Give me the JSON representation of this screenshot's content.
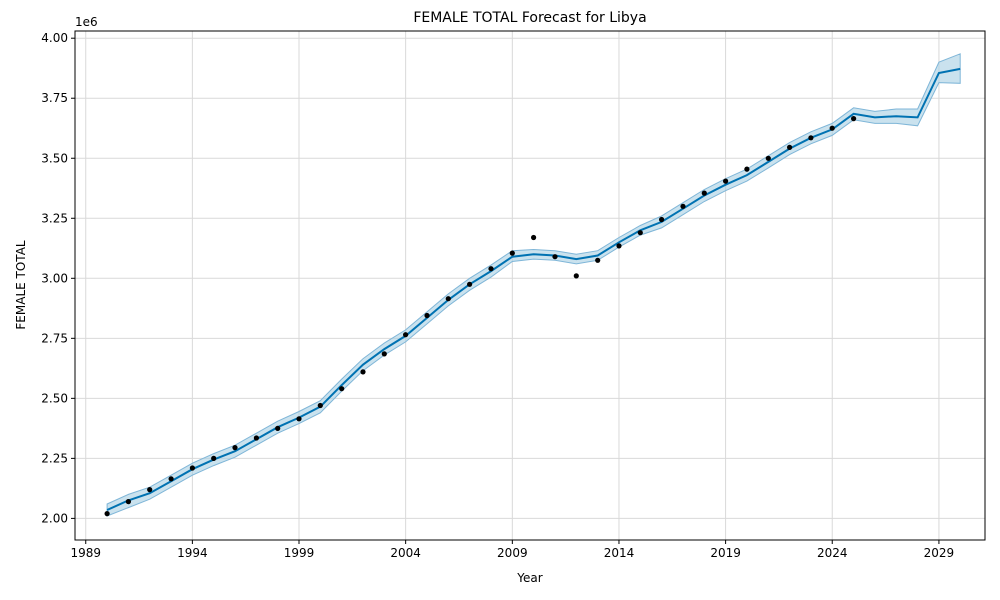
{
  "chart_data": {
    "type": "line",
    "title": "FEMALE TOTAL Forecast for Libya",
    "xlabel": "Year",
    "ylabel": "FEMALE TOTAL",
    "y_multiplier_label": "1e6",
    "xlim": [
      "1988-07-01",
      "2031-03-01"
    ],
    "ylim": [
      1.91,
      4.03
    ],
    "x_ticks": [
      "1989",
      "1994",
      "1999",
      "2004",
      "2009",
      "2014",
      "2019",
      "2024",
      "2029"
    ],
    "y_ticks": [
      "2.00",
      "2.25",
      "2.50",
      "2.75",
      "3.00",
      "3.25",
      "3.50",
      "3.75",
      "4.00"
    ],
    "grid": true,
    "colors": {
      "forecast": "#0072B2",
      "band": "#A6CEE3",
      "observed": "#000000",
      "grid": "#d9d9d9"
    },
    "observed": {
      "x": [
        "1990-01-01",
        "1991-01-01",
        "1992-01-01",
        "1993-01-01",
        "1994-01-01",
        "1995-01-01",
        "1996-01-01",
        "1997-01-01",
        "1998-01-01",
        "1999-01-01",
        "2000-01-01",
        "2001-01-01",
        "2002-01-01",
        "2003-01-01",
        "2004-01-01",
        "2005-01-01",
        "2006-01-01",
        "2007-01-01",
        "2008-01-01",
        "2009-01-01",
        "2010-01-01",
        "2011-01-01",
        "2012-01-01",
        "2013-01-01",
        "2014-01-01",
        "2015-01-01",
        "2016-01-01",
        "2017-01-01",
        "2018-01-01",
        "2019-01-01",
        "2020-01-01",
        "2021-01-01",
        "2022-01-01",
        "2023-01-01",
        "2024-01-01",
        "2025-01-01"
      ],
      "y": [
        2.02,
        2.07,
        2.12,
        2.165,
        2.21,
        2.25,
        2.295,
        2.335,
        2.375,
        2.415,
        2.47,
        2.54,
        2.61,
        2.685,
        2.765,
        2.845,
        2.915,
        2.975,
        3.04,
        3.105,
        3.17,
        3.09,
        3.01,
        3.075,
        3.135,
        3.19,
        3.245,
        3.3,
        3.355,
        3.405,
        3.455,
        3.5,
        3.545,
        3.585,
        3.625,
        3.665
      ]
    },
    "forecast": {
      "x": [
        "1990-01-01",
        "1991-01-01",
        "1992-01-01",
        "1993-01-01",
        "1994-01-01",
        "1995-01-01",
        "1996-01-01",
        "1997-01-01",
        "1998-01-01",
        "1999-01-01",
        "2000-01-01",
        "2001-01-01",
        "2002-01-01",
        "2003-01-01",
        "2004-01-01",
        "2005-01-01",
        "2006-01-01",
        "2007-01-01",
        "2008-01-01",
        "2009-01-01",
        "2010-01-01",
        "2011-01-01",
        "2012-01-01",
        "2013-01-01",
        "2014-01-01",
        "2015-01-01",
        "2016-01-01",
        "2017-01-01",
        "2018-01-01",
        "2019-01-01",
        "2020-01-01",
        "2021-01-01",
        "2022-01-01",
        "2023-01-01",
        "2024-01-01",
        "2025-01-01",
        "2026-01-01",
        "2027-01-01",
        "2028-01-01",
        "2029-01-01",
        "2030-01-01"
      ],
      "y": [
        2.035,
        2.075,
        2.105,
        2.155,
        2.205,
        2.245,
        2.28,
        2.33,
        2.38,
        2.42,
        2.465,
        2.555,
        2.64,
        2.705,
        2.76,
        2.835,
        2.91,
        2.975,
        3.03,
        3.09,
        3.1,
        3.095,
        3.08,
        3.095,
        3.15,
        3.2,
        3.235,
        3.29,
        3.345,
        3.39,
        3.43,
        3.485,
        3.54,
        3.585,
        3.62,
        3.685,
        3.67,
        3.675,
        3.67,
        3.855,
        3.872
      ],
      "lower": [
        2.01,
        2.045,
        2.08,
        2.13,
        2.18,
        2.22,
        2.255,
        2.305,
        2.355,
        2.395,
        2.44,
        2.53,
        2.615,
        2.68,
        2.735,
        2.81,
        2.885,
        2.95,
        3.005,
        3.07,
        3.08,
        3.075,
        3.06,
        3.075,
        3.13,
        3.18,
        3.21,
        3.265,
        3.32,
        3.365,
        3.405,
        3.46,
        3.515,
        3.56,
        3.595,
        3.66,
        3.645,
        3.645,
        3.635,
        3.815,
        3.812
      ],
      "upper": [
        2.06,
        2.1,
        2.13,
        2.18,
        2.23,
        2.27,
        2.305,
        2.355,
        2.405,
        2.445,
        2.49,
        2.58,
        2.665,
        2.73,
        2.785,
        2.86,
        2.935,
        3.0,
        3.055,
        3.115,
        3.12,
        3.115,
        3.1,
        3.115,
        3.17,
        3.22,
        3.26,
        3.315,
        3.37,
        3.415,
        3.455,
        3.51,
        3.565,
        3.61,
        3.645,
        3.71,
        3.695,
        3.705,
        3.705,
        3.9,
        3.935
      ]
    }
  }
}
